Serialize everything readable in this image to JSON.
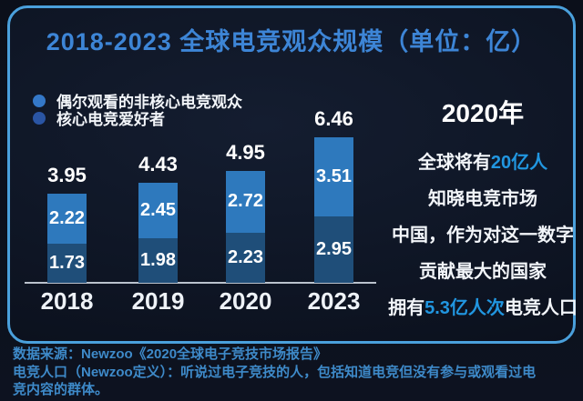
{
  "title": "2018-2023 全球电竞观众规模（单位：亿）",
  "legend": {
    "items": [
      {
        "label": "偶尔观看的非核心电竞观众",
        "dot_color": "#3478c8"
      },
      {
        "label": "核心电竞爱好者",
        "dot_color": "#2a55a4"
      }
    ]
  },
  "chart_data": {
    "type": "bar",
    "stacked": true,
    "title": "2018-2023 全球电竞观众规模（单位：亿）",
    "unit": "亿",
    "categories": [
      "2018",
      "2019",
      "2020",
      "2023"
    ],
    "series": [
      {
        "name": "核心电竞爱好者",
        "color": "#1f4e79",
        "values": [
          1.73,
          1.98,
          2.23,
          2.95
        ]
      },
      {
        "name": "偶尔观看的非核心电竞观众",
        "color": "#2e79bd",
        "values": [
          2.22,
          2.45,
          2.72,
          3.51
        ]
      }
    ],
    "totals": [
      3.95,
      4.43,
      4.95,
      6.46
    ],
    "ylim": [
      0,
      7
    ],
    "grid": false,
    "legend_position": "top-left",
    "value_labels": "inside-white"
  },
  "side_panel": {
    "heading": "2020年",
    "lines": [
      [
        {
          "t": "全球将有",
          "h": false
        },
        {
          "t": "20亿人",
          "h": true
        }
      ],
      [
        {
          "t": "知晓电竞市场",
          "h": false
        }
      ],
      [
        {
          "t": "中国，作为对这一数字",
          "h": false
        }
      ],
      [
        {
          "t": "贡献最大的国家",
          "h": false
        }
      ],
      [
        {
          "t": "拥有",
          "h": false
        },
        {
          "t": "5.3亿人次",
          "h": true
        },
        {
          "t": "电竞人口",
          "h": false
        }
      ]
    ]
  },
  "footer": {
    "lines": [
      "数据来源：Newzoo《2020全球电子竞技市场报告》",
      "电竞人口（Newzoo定义）：听说过电子竞技的人，包括知道电竞但没有参与或观看过电",
      "竞内容的群体。"
    ]
  },
  "colors": {
    "title": "#3d85d6",
    "border": "#4aa0dc",
    "footer_text": "#3e8ac9",
    "axis_line": "#cdd5e0",
    "highlight": "#2196e0",
    "bar_core": "#1f4e79",
    "bar_noncore": "#2e79bd"
  }
}
